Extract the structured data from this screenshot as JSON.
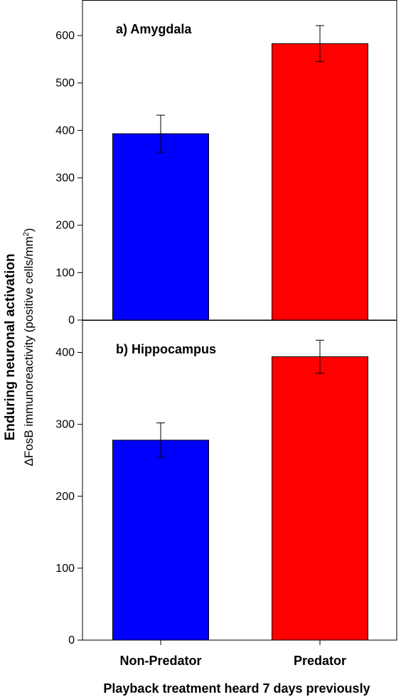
{
  "chart_data": {
    "type": "bar",
    "xlabel": "Playback treatment heard 7 days previously",
    "ylabel_line1": "Enduring neuronal activation",
    "ylabel_line2_prefix": "ΔFosB immunoreactivity  (positive cells/mm",
    "ylabel_line2_sup": "2",
    "ylabel_line2_suffix": ")",
    "categories": [
      "Non-Predator",
      "Predator"
    ],
    "grid": false,
    "legend": "none",
    "panels": [
      {
        "title": "a) Amygdala",
        "ylim": [
          0,
          675
        ],
        "yticks": [
          0,
          100,
          200,
          300,
          400,
          500,
          600
        ],
        "values": [
          393,
          583
        ],
        "errors": [
          39,
          38
        ],
        "colors": [
          "#0000ff",
          "#ff0000"
        ]
      },
      {
        "title": "b) Hippocampus",
        "ylim": [
          0,
          445
        ],
        "yticks": [
          0,
          100,
          200,
          300,
          400
        ],
        "values": [
          278,
          394
        ],
        "errors": [
          24,
          23
        ],
        "colors": [
          "#0000ff",
          "#ff0000"
        ]
      }
    ]
  }
}
